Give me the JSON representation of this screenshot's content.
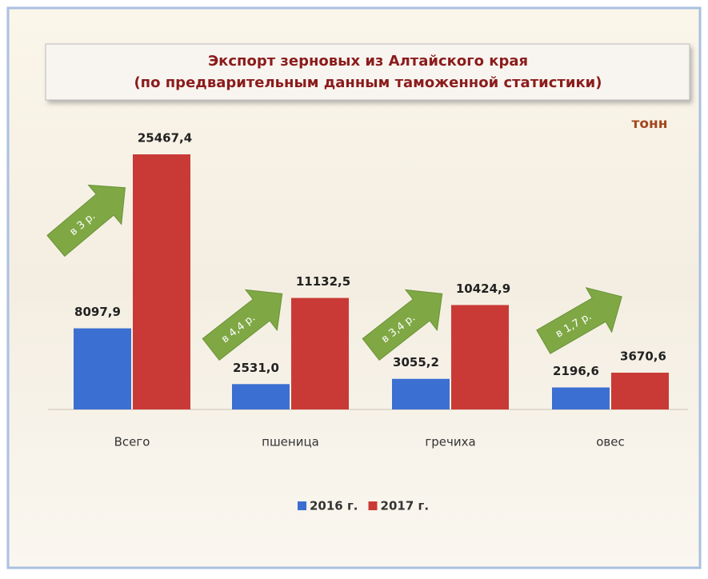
{
  "chart_data": {
    "type": "bar",
    "title": [
      "Экспорт зерновых из Алтайского края",
      "(по предварительным данным таможенной статистики)"
    ],
    "unit": "тонн",
    "categories": [
      "Всего",
      "пшеница",
      "гречиха",
      "овес"
    ],
    "series": [
      {
        "name": "2016 г.",
        "color": "#3b6fd1",
        "values": [
          8097.9,
          2531.0,
          3055.2,
          2196.6
        ],
        "value_labels": [
          "8097,9",
          "2531,0",
          "3055,2",
          "2196,6"
        ]
      },
      {
        "name": "2017 г.",
        "color": "#c93a36",
        "values": [
          25467.4,
          11132.5,
          10424.9,
          3670.6
        ],
        "value_labels": [
          "25467,4",
          "11132,5",
          "10424,9",
          "3670,6"
        ]
      }
    ],
    "annotations": [
      "в 3 р.",
      "в 4,4 р.",
      "в 3,4 р.",
      "в 1,7 р."
    ],
    "legend": "bottom"
  }
}
